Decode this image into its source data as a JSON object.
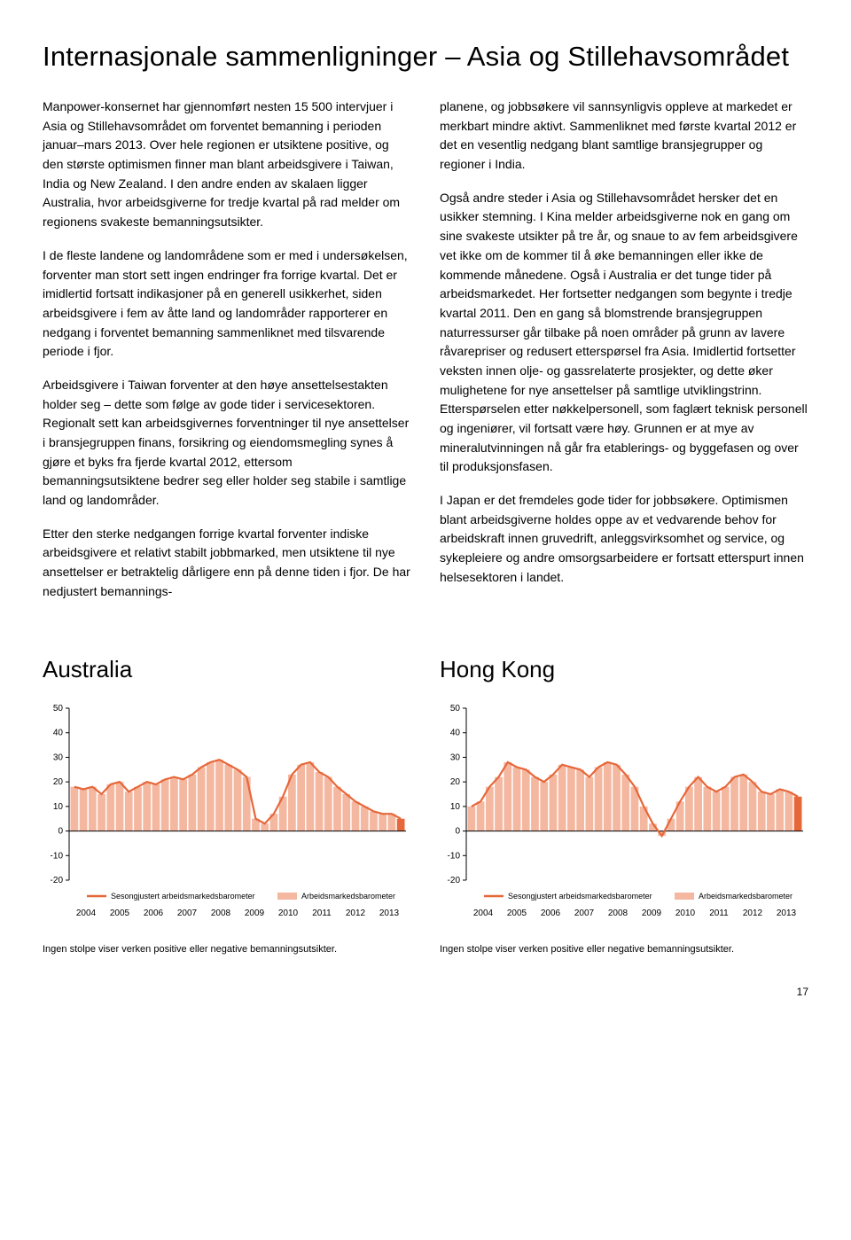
{
  "title": "Internasjonale sammenligninger – Asia og Stillehavsområdet",
  "left": {
    "p1": "Manpower-konsernet har gjennomført nesten 15 500 intervjuer i Asia og Stillehavsområdet om forventet bemanning i perioden januar–mars 2013. Over hele regionen er utsiktene positive, og den største optimismen finner man blant arbeidsgivere i Taiwan, India og New Zealand. I den andre enden av skalaen ligger Australia, hvor arbeidsgiverne for tredje kvartal på rad melder om regionens svakeste bemanningsutsikter.",
    "p2": "I de fleste landene og landområdene som er med i undersøkelsen, forventer man stort sett ingen endringer fra forrige kvartal. Det er imidlertid fortsatt indikasjoner på en generell usikkerhet, siden arbeidsgivere i fem av åtte land og landområder rapporterer en nedgang i forventet bemanning sammenliknet med tilsvarende periode i fjor.",
    "p3": "Arbeidsgivere i Taiwan forventer at den høye ansettelsestakten holder seg – dette som følge av gode tider i servicesektoren. Regionalt sett kan arbeidsgivernes forventninger til nye ansettelser i bransjegruppen finans, forsikring og eiendomsmegling synes å gjøre et byks fra fjerde kvartal 2012, ettersom bemanningsutsiktene bedrer seg eller holder seg stabile i samtlige land og landområder.",
    "p4": "Etter den sterke nedgangen forrige kvartal forventer indiske arbeidsgivere et relativt stabilt jobbmarked, men utsiktene til nye ansettelser er betraktelig dårligere enn på denne tiden i fjor. De har nedjustert bemannings-"
  },
  "right": {
    "p1": "planene, og jobbsøkere vil sannsynligvis oppleve at markedet er merkbart mindre aktivt. Sammenliknet med første kvartal 2012 er det en vesentlig nedgang blant samtlige bransjegrupper og regioner i India.",
    "p2": "Også andre steder i Asia og Stillehavsområdet hersker det en usikker stemning. I Kina melder arbeidsgiverne nok en gang om sine svakeste utsikter på tre år, og snaue to av fem arbeidsgivere vet ikke om de kommer til å øke bemanningen eller ikke de kommende månedene. Også i Australia er det tunge tider på arbeidsmarkedet. Her fortsetter nedgangen som begynte i tredje kvartal 2011. Den en gang så blomstrende bransjegruppen naturressurser går tilbake på noen områder på grunn av lavere råvarepriser og redusert etterspørsel fra Asia. Imidlertid fortsetter veksten innen olje- og gassrelaterte prosjekter, og dette øker mulighetene for nye ansettelser på samtlige utviklingstrinn. Etterspørselen etter nøkkelpersonell, som faglært teknisk personell og ingeniører, vil fortsatt være høy. Grunnen er at mye av mineralutvinningen nå går fra etablerings- og byggefasen og over til produksjonsfasen.",
    "p3": "I Japan er det fremdeles gode tider for jobbsøkere. Optimismen blant arbeidsgiverne holdes oppe av et vedvarende behov for arbeidskraft innen gruvedrift, anleggsvirksomhet og service, og sykepleiere og andre omsorgsarbeidere er fortsatt etterspurt innen helsesektoren i landet."
  },
  "chart_common": {
    "y_ticks": [
      50,
      40,
      30,
      20,
      10,
      0,
      -10,
      -20
    ],
    "ylim": [
      -20,
      50
    ],
    "x_labels": [
      "2004",
      "2005",
      "2006",
      "2007",
      "2008",
      "2009",
      "2010",
      "2011",
      "2012",
      "2013"
    ],
    "bar_color": "#f4b7a0",
    "line_color": "#e6673a",
    "last_bar_color": "#e6673a",
    "axis_color": "#000000",
    "tick_font_size": 10,
    "legend_seasonal": "Sesongjustert arbeidsmarkedsbarometer",
    "legend_raw": "Arbeidsmarkedsbarometer",
    "footnote": "Ingen stolpe viser verken positive eller negative bemanningsutsikter."
  },
  "australia": {
    "title": "Australia",
    "bars": [
      18,
      17,
      18,
      15,
      19,
      20,
      16,
      18,
      20,
      19,
      21,
      22,
      21,
      23,
      26,
      28,
      29,
      27,
      25,
      22,
      5,
      3,
      7,
      14,
      23,
      27,
      28,
      24,
      22,
      18,
      15,
      12,
      10,
      8,
      7,
      7,
      5
    ],
    "line": [
      18,
      17,
      18,
      15,
      19,
      20,
      16,
      18,
      20,
      19,
      21,
      22,
      21,
      23,
      26,
      28,
      29,
      27,
      25,
      22,
      5,
      3,
      7,
      14,
      23,
      27,
      28,
      24,
      22,
      18,
      15,
      12,
      10,
      8,
      7,
      7,
      5
    ]
  },
  "hongkong": {
    "title": "Hong Kong",
    "bars": [
      10,
      12,
      18,
      22,
      28,
      26,
      25,
      22,
      20,
      23,
      27,
      26,
      25,
      22,
      26,
      28,
      27,
      23,
      18,
      10,
      3,
      -2,
      5,
      12,
      18,
      22,
      18,
      16,
      18,
      22,
      23,
      20,
      16,
      15,
      17,
      16,
      14
    ],
    "line": [
      10,
      12,
      18,
      22,
      28,
      26,
      25,
      22,
      20,
      23,
      27,
      26,
      25,
      22,
      26,
      28,
      27,
      23,
      18,
      10,
      3,
      -2,
      5,
      12,
      18,
      22,
      18,
      16,
      18,
      22,
      23,
      20,
      16,
      15,
      17,
      16,
      14
    ]
  },
  "page_number": "17"
}
